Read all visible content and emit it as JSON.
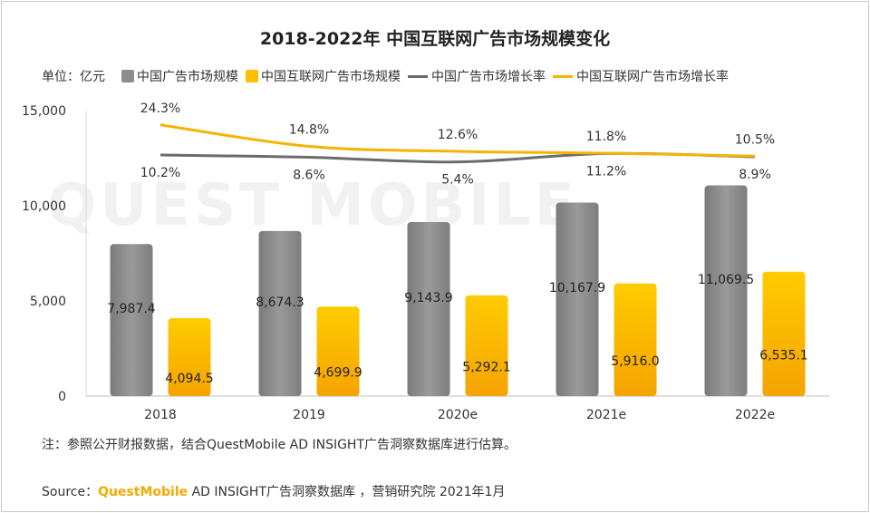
{
  "title": "2018-2022年 中国互联网广告市场规模变化",
  "unit_label": "单位：亿元",
  "legend": [
    {
      "label": "中国广告市场规模",
      "kind": "box",
      "color": "#8c8c8c"
    },
    {
      "label": "中国互联网广告市场规模",
      "kind": "box",
      "color": "#ffbf00"
    },
    {
      "label": "中国广告市场增长率",
      "kind": "line",
      "color": "#6b6b6b"
    },
    {
      "label": "中国互联网广告市场增长率",
      "kind": "line",
      "color": "#f5b400"
    }
  ],
  "note": "注：参照公开财报数据，结合QuestMobile AD INSIGHT广告洞察数据库进行估算。",
  "source": {
    "prefix": "Source：",
    "brand": "QuestMobile",
    "rest": " AD INSIGHT广告洞察数据库 ，营销研究院 2021年1月"
  },
  "watermark": "QUEST MOBILE",
  "chart_data": {
    "type": "bar",
    "categories": [
      "2018",
      "2019",
      "2020e",
      "2021e",
      "2022e"
    ],
    "series": [
      {
        "name": "中国广告市场规模",
        "type": "bar",
        "color": "#8c8c8c",
        "values": [
          7987.4,
          8674.3,
          9143.9,
          10167.9,
          11069.5
        ],
        "labels": [
          "7,987.4",
          "8,674.3",
          "9,143.9",
          "10,167.9",
          "11,069.5"
        ]
      },
      {
        "name": "中国互联网广告市场规模",
        "type": "bar",
        "color": "#ffbf00",
        "values": [
          4094.5,
          4699.9,
          5292.1,
          5916.0,
          6535.1
        ],
        "labels": [
          "4,094.5",
          "4,699.9",
          "5,292.1",
          "5,916.0",
          "6,535.1"
        ]
      },
      {
        "name": "中国广告市场增长率",
        "type": "line",
        "color": "#6b6b6b",
        "values": [
          10.2,
          8.6,
          5.4,
          11.2,
          8.9
        ],
        "labels": [
          "10.2%",
          "8.6%",
          "5.4%",
          "11.2%",
          "8.9%"
        ]
      },
      {
        "name": "中国互联网广告市场增长率",
        "type": "line",
        "color": "#f5b400",
        "values": [
          24.3,
          14.8,
          12.6,
          11.8,
          10.5
        ],
        "labels": [
          "24.3%",
          "14.8%",
          "12.6%",
          "11.8%",
          "10.5%"
        ]
      }
    ],
    "ylim": [
      0,
      15000
    ],
    "yticks": [
      "0",
      "5,000",
      "10,000",
      "15,000"
    ],
    "ytick_values": [
      0,
      5000,
      10000,
      15000
    ]
  }
}
